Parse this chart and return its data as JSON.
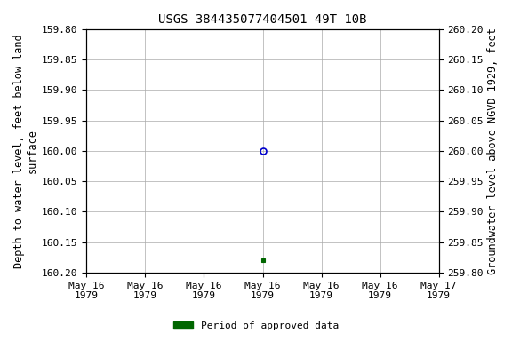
{
  "title": "USGS 384435077404501 49T 10B",
  "ylabel_left": "Depth to water level, feet below land\nsurface",
  "ylabel_right": "Groundwater level above NGVD 1929, feet",
  "ylim_left": [
    160.2,
    159.8
  ],
  "ylim_right": [
    259.8,
    260.2
  ],
  "yticks_left": [
    159.8,
    159.85,
    159.9,
    159.95,
    160.0,
    160.05,
    160.1,
    160.15,
    160.2
  ],
  "yticks_right": [
    260.2,
    260.15,
    260.1,
    260.05,
    260.0,
    259.95,
    259.9,
    259.85,
    259.8
  ],
  "xlim": [
    0,
    6
  ],
  "xtick_positions": [
    0,
    1,
    2,
    3,
    4,
    5,
    6
  ],
  "xtick_labels": [
    "May 16\n1979",
    "May 16\n1979",
    "May 16\n1979",
    "May 16\n1979",
    "May 16\n1979",
    "May 16\n1979",
    "May 17\n1979"
  ],
  "point_blue_x": 3.0,
  "point_blue_y": 160.0,
  "point_green_x": 3.0,
  "point_green_y": 160.18,
  "blue_color": "#0000cc",
  "green_color": "#006600",
  "bg_color": "#ffffff",
  "grid_color": "#aaaaaa",
  "legend_label": "Period of approved data",
  "title_fontsize": 10,
  "axis_label_fontsize": 8.5,
  "tick_fontsize": 8,
  "font_family": "monospace"
}
